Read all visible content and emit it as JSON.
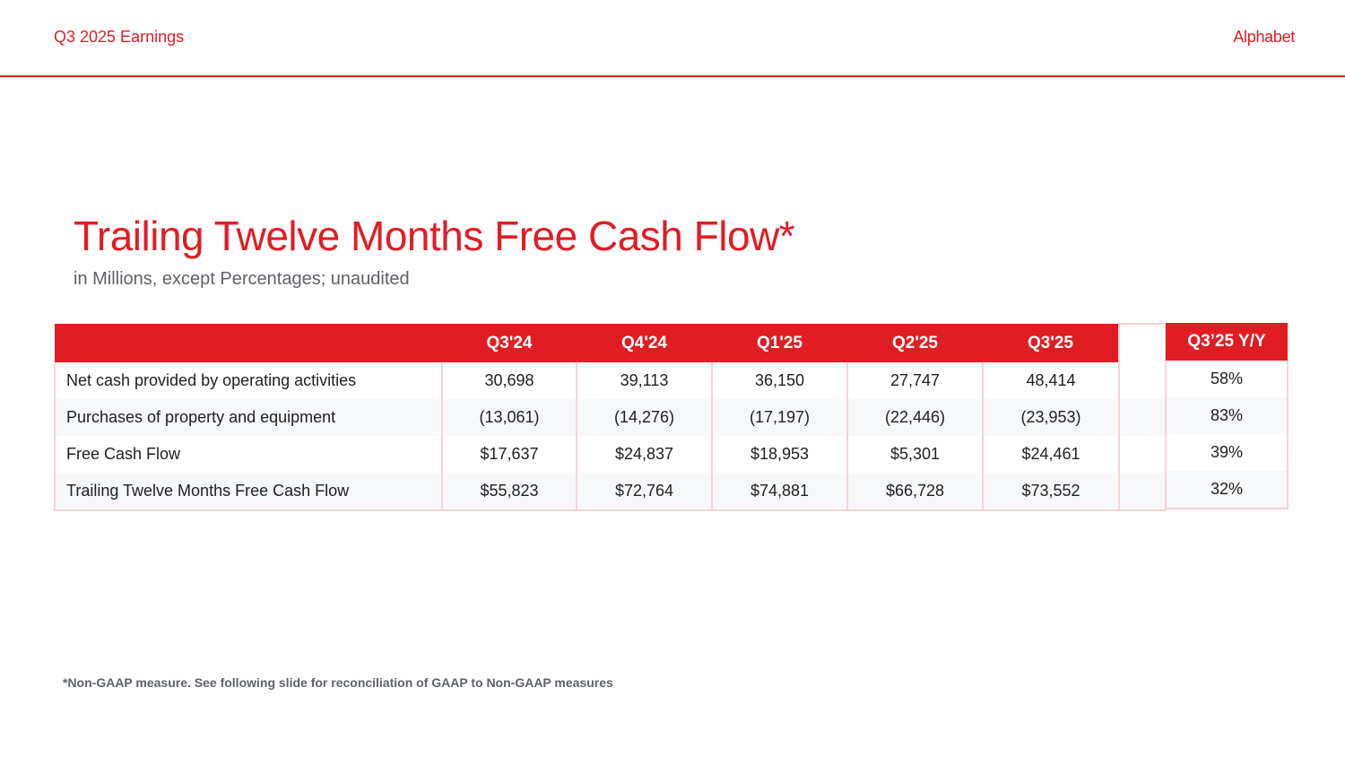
{
  "header": {
    "section": "Q3 2025 Earnings",
    "brand": "Alphabet"
  },
  "title": "Trailing Twelve Months Free Cash Flow*",
  "subtitle": "in Millions, except Percentages; unaudited",
  "table": {
    "columns": [
      "Q3'24",
      "Q4'24",
      "Q1'25",
      "Q2'25",
      "Q3'25"
    ],
    "rows": [
      {
        "label": "Net cash provided by operating activities",
        "values": [
          "30,698",
          "39,113",
          "36,150",
          "27,747",
          "48,414"
        ]
      },
      {
        "label": "Purchases of property and equipment",
        "values": [
          "(13,061)",
          "(14,276)",
          "(17,197)",
          "(22,446)",
          "(23,953)"
        ]
      },
      {
        "label": "Free Cash Flow",
        "values": [
          "$17,637",
          "$24,837",
          "$18,953",
          "$5,301",
          "$24,461"
        ]
      },
      {
        "label": "Trailing Twelve Months Free Cash Flow",
        "values": [
          "$55,823",
          "$72,764",
          "$74,881",
          "$66,728",
          "$73,552"
        ]
      }
    ]
  },
  "yoy": {
    "header": "Q3’25 Y/Y",
    "values": [
      "58%",
      "83%",
      "39%",
      "32%"
    ]
  },
  "footnote": "*Non-GAAP measure. See following slide for reconciliation of GAAP to Non-GAAP measures",
  "colors": {
    "accent": "#e11d24",
    "subtle_text": "#5f6368",
    "row_alt": "#f7f8fa"
  }
}
